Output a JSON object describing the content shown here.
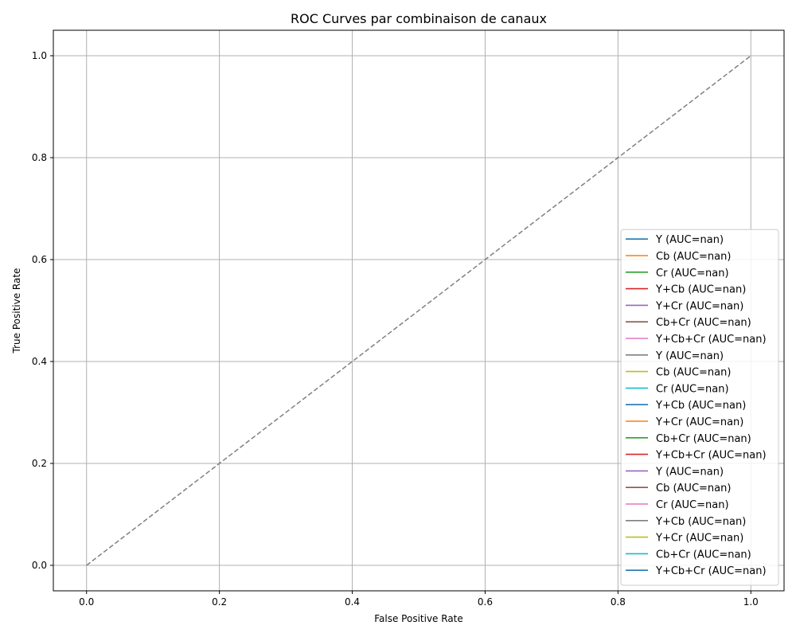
{
  "chart_data": {
    "type": "line",
    "title": "ROC Curves par combinaison de canaux",
    "xlabel": "False Positive Rate",
    "ylabel": "True Positive Rate",
    "xlim": [
      -0.05,
      1.05
    ],
    "ylim": [
      -0.05,
      1.05
    ],
    "xticks": [
      0.0,
      0.2,
      0.4,
      0.6,
      0.8,
      1.0
    ],
    "yticks": [
      0.0,
      0.2,
      0.4,
      0.6,
      0.8,
      1.0
    ],
    "xtick_labels": [
      "0.0",
      "0.2",
      "0.4",
      "0.6",
      "0.8",
      "1.0"
    ],
    "ytick_labels": [
      "0.0",
      "0.2",
      "0.4",
      "0.6",
      "0.8",
      "1.0"
    ],
    "grid": true,
    "legend_position": "lower-right",
    "reference_line": {
      "x": [
        0,
        1
      ],
      "y": [
        0,
        1
      ],
      "color": "#808080",
      "style": "dashed"
    },
    "series": [
      {
        "name": "Y (AUC=nan)",
        "color": "#1f77b4",
        "x": [],
        "y": []
      },
      {
        "name": "Cb (AUC=nan)",
        "color": "#ff7f0e",
        "x": [],
        "y": []
      },
      {
        "name": "Cr (AUC=nan)",
        "color": "#2ca02c",
        "x": [],
        "y": []
      },
      {
        "name": "Y+Cb (AUC=nan)",
        "color": "#d62728",
        "x": [],
        "y": []
      },
      {
        "name": "Y+Cr (AUC=nan)",
        "color": "#9467bd",
        "x": [],
        "y": []
      },
      {
        "name": "Cb+Cr (AUC=nan)",
        "color": "#8c564b",
        "x": [],
        "y": []
      },
      {
        "name": "Y+Cb+Cr (AUC=nan)",
        "color": "#e377c2",
        "x": [],
        "y": []
      },
      {
        "name": "Y (AUC=nan)",
        "color": "#7f7f7f",
        "x": [],
        "y": []
      },
      {
        "name": "Cb (AUC=nan)",
        "color": "#bcbd22",
        "x": [],
        "y": []
      },
      {
        "name": "Cr (AUC=nan)",
        "color": "#17becf",
        "x": [],
        "y": []
      },
      {
        "name": "Y+Cb (AUC=nan)",
        "color": "#1f77b4",
        "x": [],
        "y": []
      },
      {
        "name": "Y+Cr (AUC=nan)",
        "color": "#ff7f0e",
        "x": [],
        "y": []
      },
      {
        "name": "Cb+Cr (AUC=nan)",
        "color": "#2ca02c",
        "x": [],
        "y": []
      },
      {
        "name": "Y+Cb+Cr (AUC=nan)",
        "color": "#d62728",
        "x": [],
        "y": []
      },
      {
        "name": "Y (AUC=nan)",
        "color": "#9467bd",
        "x": [],
        "y": []
      },
      {
        "name": "Cb (AUC=nan)",
        "color": "#8c564b",
        "x": [],
        "y": []
      },
      {
        "name": "Cr (AUC=nan)",
        "color": "#e377c2",
        "x": [],
        "y": []
      },
      {
        "name": "Y+Cb (AUC=nan)",
        "color": "#7f7f7f",
        "x": [],
        "y": []
      },
      {
        "name": "Y+Cr (AUC=nan)",
        "color": "#bcbd22",
        "x": [],
        "y": []
      },
      {
        "name": "Cb+Cr (AUC=nan)",
        "color": "#17becf",
        "x": [],
        "y": []
      },
      {
        "name": "Y+Cb+Cr (AUC=nan)",
        "color": "#1f77b4",
        "x": [],
        "y": []
      }
    ]
  }
}
